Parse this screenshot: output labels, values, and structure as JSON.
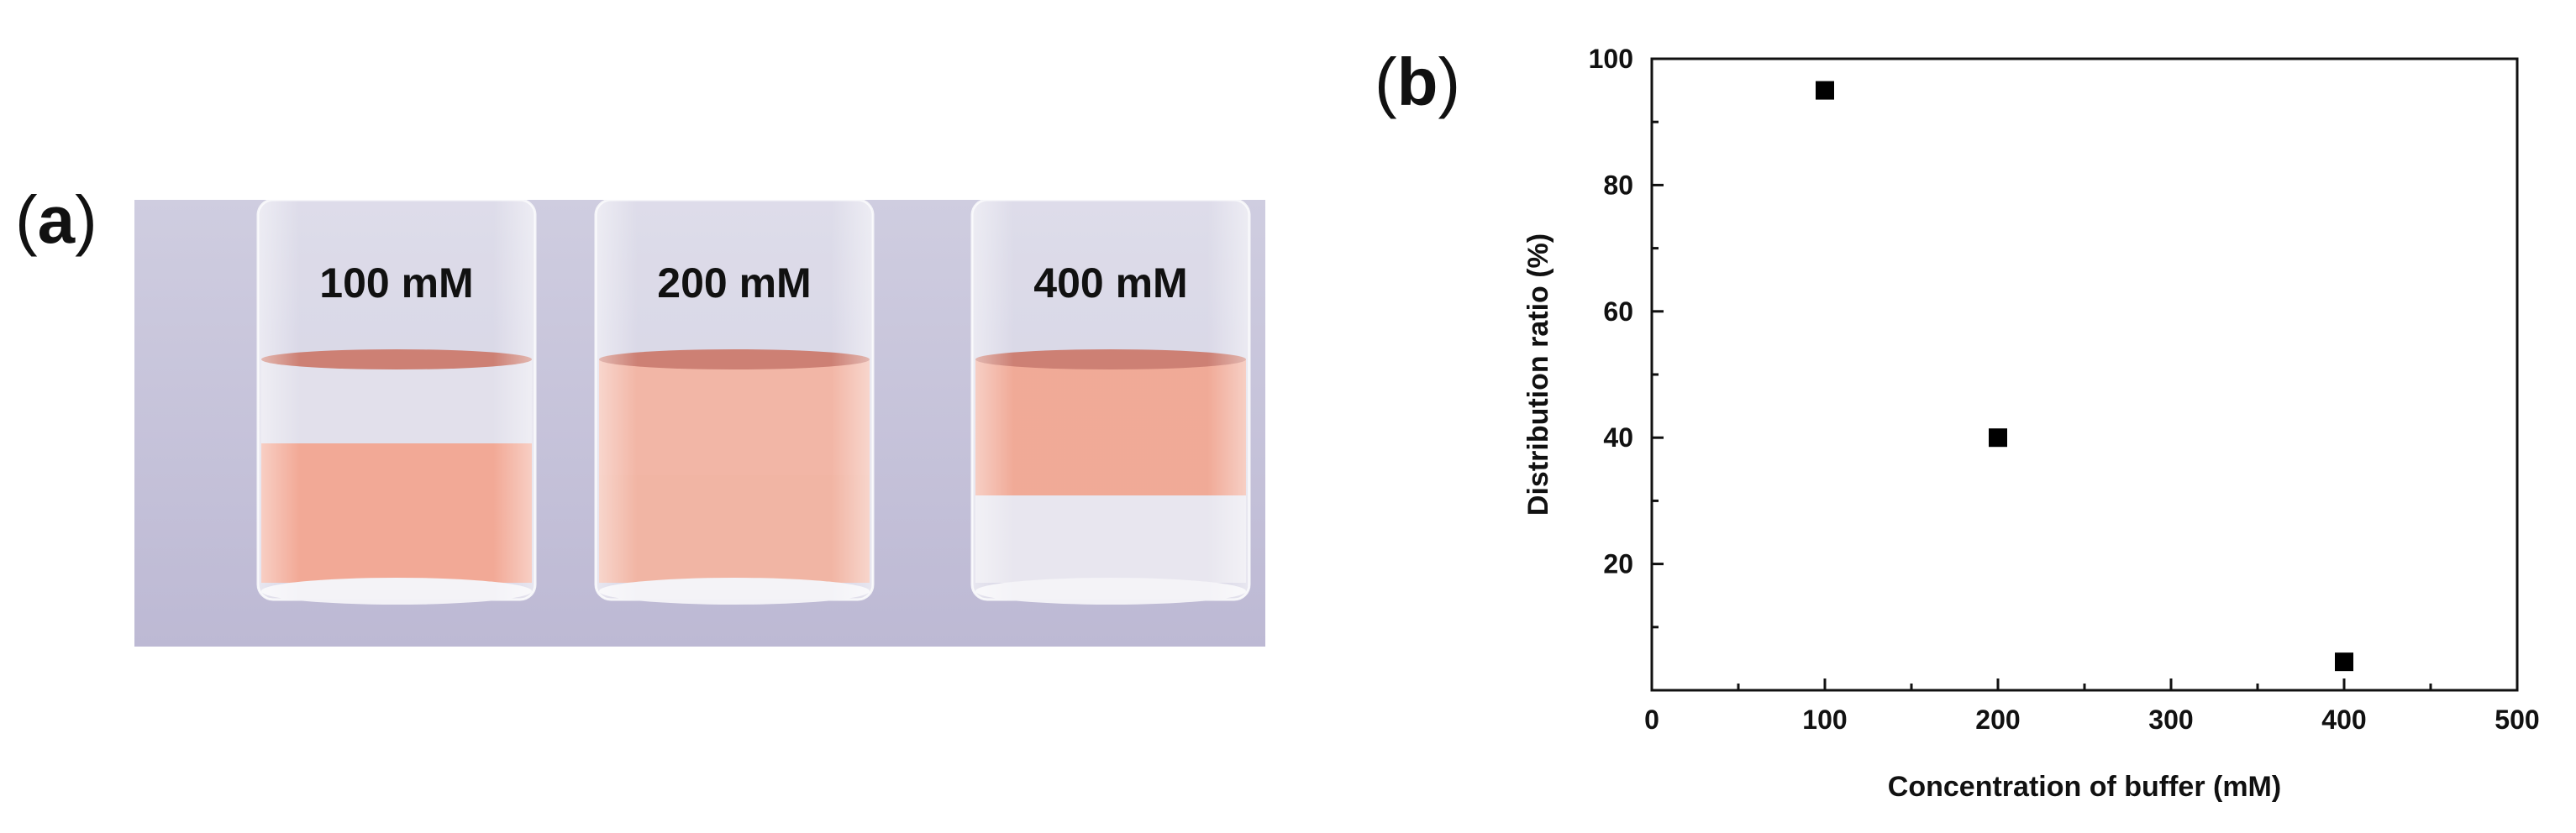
{
  "panel_a": {
    "label": "a",
    "vials": [
      {
        "label": "100 mM",
        "upper_color": "#dddbe8",
        "lower_color": "#f09a84"
      },
      {
        "label": "200 mM",
        "upper_color": "#f0a996",
        "lower_color": "#efa894"
      },
      {
        "label": "400 mM",
        "upper_color": "#ee9b85",
        "lower_color": "#e4e2ec"
      }
    ],
    "background_color": "#c8c5da"
  },
  "panel_b": {
    "label": "b"
  },
  "chart_data": {
    "type": "scatter",
    "x": [
      100,
      200,
      400
    ],
    "y": [
      95,
      40,
      4.5
    ],
    "xlabel": "Concentration of buffer (mM)",
    "ylabel": "Distribution ratio (%)",
    "xlim": [
      0,
      500
    ],
    "ylim": [
      0,
      100
    ],
    "xticks": [
      0,
      100,
      200,
      300,
      400,
      500
    ],
    "yticks": [
      20,
      40,
      60,
      80,
      100
    ],
    "grid": false,
    "marker": "square",
    "marker_color": "#000000"
  }
}
